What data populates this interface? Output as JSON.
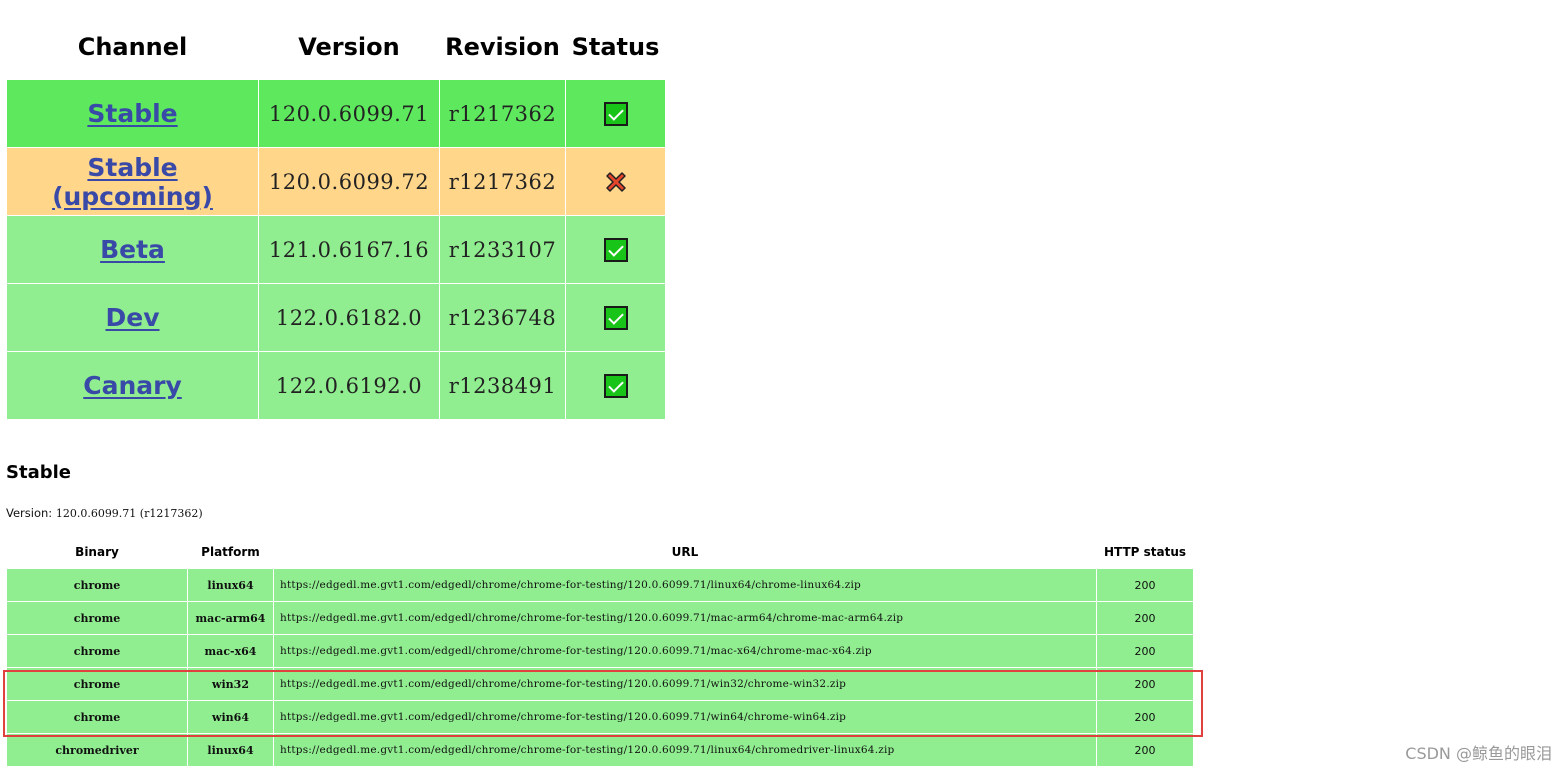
{
  "channel_table": {
    "headers": {
      "channel": "Channel",
      "version": "Version",
      "revision": "Revision",
      "status": "Status"
    },
    "rows": [
      {
        "channel": "Stable",
        "version": "120.0.6099.71",
        "revision": "r1217362",
        "status": "ok",
        "row_color": "#5ee85e"
      },
      {
        "channel": "Stable (upcoming)",
        "version": "120.0.6099.72",
        "revision": "r1217362",
        "status": "fail",
        "row_color": "#ffd68a"
      },
      {
        "channel": "Beta",
        "version": "121.0.6167.16",
        "revision": "r1233107",
        "status": "ok",
        "row_color": "#90ee90"
      },
      {
        "channel": "Dev",
        "version": "122.0.6182.0",
        "revision": "r1236748",
        "status": "ok",
        "row_color": "#90ee90"
      },
      {
        "channel": "Canary",
        "version": "122.0.6192.0",
        "revision": "r1238491",
        "status": "ok",
        "row_color": "#90ee90"
      }
    ]
  },
  "stable_section": {
    "title": "Stable",
    "version_label": "Version:",
    "version_value": "120.0.6099.71 (r1217362)",
    "headers": {
      "binary": "Binary",
      "platform": "Platform",
      "url": "URL",
      "http_status": "HTTP status"
    },
    "rows": [
      {
        "binary": "chrome",
        "platform": "linux64",
        "url": "https://edgedl.me.gvt1.com/edgedl/chrome/chrome-for-testing/120.0.6099.71/linux64/chrome-linux64.zip",
        "http_status": "200"
      },
      {
        "binary": "chrome",
        "platform": "mac-arm64",
        "url": "https://edgedl.me.gvt1.com/edgedl/chrome/chrome-for-testing/120.0.6099.71/mac-arm64/chrome-mac-arm64.zip",
        "http_status": "200"
      },
      {
        "binary": "chrome",
        "platform": "mac-x64",
        "url": "https://edgedl.me.gvt1.com/edgedl/chrome/chrome-for-testing/120.0.6099.71/mac-x64/chrome-mac-x64.zip",
        "http_status": "200"
      },
      {
        "binary": "chrome",
        "platform": "win32",
        "url": "https://edgedl.me.gvt1.com/edgedl/chrome/chrome-for-testing/120.0.6099.71/win32/chrome-win32.zip",
        "http_status": "200"
      },
      {
        "binary": "chrome",
        "platform": "win64",
        "url": "https://edgedl.me.gvt1.com/edgedl/chrome/chrome-for-testing/120.0.6099.71/win64/chrome-win64.zip",
        "http_status": "200"
      },
      {
        "binary": "chromedriver",
        "platform": "linux64",
        "url": "https://edgedl.me.gvt1.com/edgedl/chrome/chrome-for-testing/120.0.6099.71/linux64/chromedriver-linux64.zip",
        "http_status": "200"
      }
    ],
    "highlighted_platforms": [
      "win32",
      "win64"
    ]
  },
  "colors": {
    "ok_row": "#90ee90",
    "ok_row_strong": "#5ee85e",
    "warn_row": "#ffd68a",
    "link": "#3949a8",
    "check": "#18c418",
    "cross": "#e5452a",
    "highlight_border": "#e0413c"
  },
  "icons": {
    "ok": "check-box-icon",
    "fail": "cross-icon"
  },
  "watermark": "CSDN @鲸鱼的眼泪"
}
